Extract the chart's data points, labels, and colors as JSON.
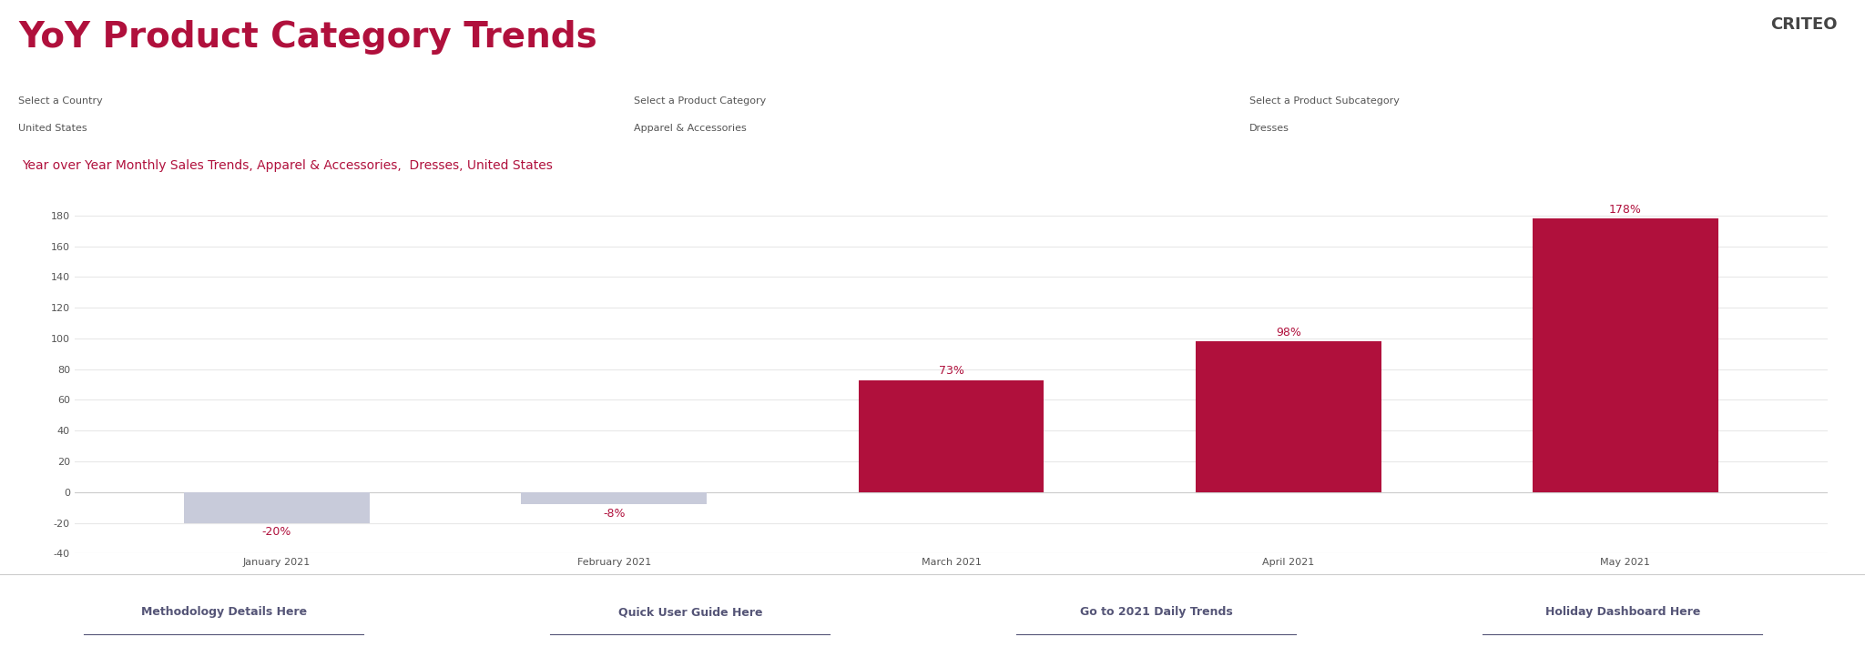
{
  "main_title": "YoY Product Category Trends",
  "filter_label1": "Select a Country",
  "filter_value1": "United States",
  "filter_label2": "Select a Product Category",
  "filter_value2": "Apparel & Accessories",
  "filter_label3": "Select a Product Subcategory",
  "filter_value3": "Dresses",
  "chart_subtitle": "Year over Year Monthly Sales Trends, Apparel & Accessories,  Dresses, United States",
  "categories": [
    "January 2021",
    "February 2021",
    "March 2021",
    "April 2021",
    "May 2021"
  ],
  "values": [
    -20,
    -8,
    73,
    98,
    178
  ],
  "labels": [
    "-20%",
    "-8%",
    "73%",
    "98%",
    "178%"
  ],
  "positive_color": "#B0103C",
  "negative_color": "#C8CBDA",
  "ylim": [
    -40,
    190
  ],
  "yticks": [
    -40,
    -20,
    0,
    20,
    40,
    60,
    80,
    100,
    120,
    140,
    160,
    180
  ],
  "background_color": "#FFFFFF",
  "header_bg": "#F2F2F2",
  "footer_links": [
    "Methodology Details Here",
    "Quick User Guide Here",
    "Go to 2021 Daily Trends",
    "Holiday Dashboard Here"
  ],
  "criteo_text": "CRITEO",
  "title_color": "#B0103C",
  "subtitle_color": "#B0103C",
  "filter_label_color": "#555555",
  "filter_value_color": "#555555",
  "grid_color": "#E8E8E8",
  "label_color": "#B0103C",
  "footer_bg": "#F2F2F2",
  "footer_link_color": "#555577"
}
